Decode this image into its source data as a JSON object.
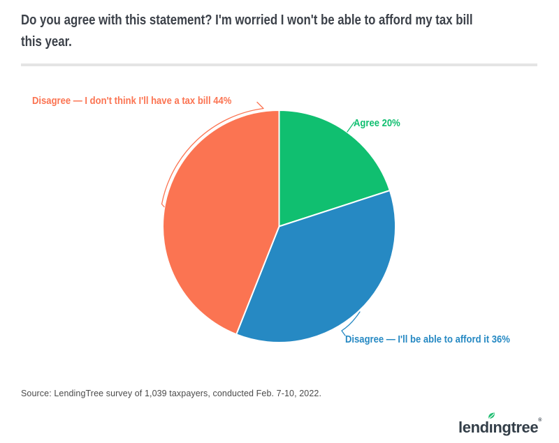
{
  "page": {
    "title_lines": [
      "Do you agree with this statement? I'm worried I won't be able to afford my tax bill",
      "this year."
    ],
    "source": "Source: LendingTree survey of 1,039 taxpayers, conducted Feb. 7-10, 2022."
  },
  "chart_data": {
    "type": "pie",
    "title": "Do you agree with this statement? I'm worried I won't be able to afford my tax bill this year.",
    "start_angle_deg": 0,
    "direction": "clockwise",
    "slices": [
      {
        "label": "Agree",
        "value": 20,
        "display": "Agree 20%",
        "color": "#10bf70"
      },
      {
        "label": "Disagree — I'll be able to afford it",
        "value": 36,
        "display": "Disagree — I'll be able to afford it 36%",
        "color": "#2689c3"
      },
      {
        "label": "Disagree — I don't think I'll have a tax bill",
        "value": 44,
        "display": "Disagree — I don't think I'll have a tax bill 44%",
        "color": "#fb7452"
      }
    ]
  },
  "footer": {
    "logo": {
      "text_before_i": "lend",
      "i_char": "ı",
      "text_after_i": "ngtree",
      "registered": "®",
      "brand_color": "#333e48",
      "leaf_color": "#21be72"
    }
  }
}
